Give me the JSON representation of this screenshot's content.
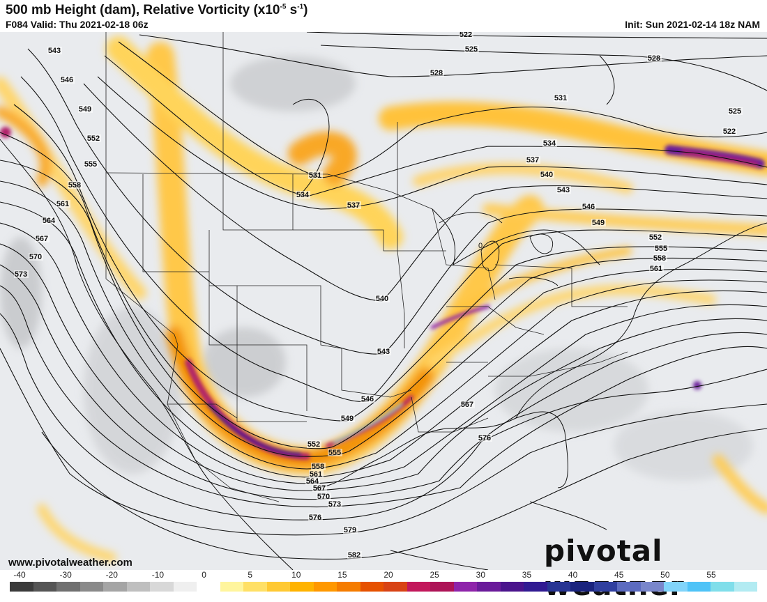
{
  "header": {
    "title": "500 mb Height (dam), Relative Vorticity (x10",
    "title_exp": "-5",
    "title_unit": " s",
    "title_unit_exp": "-1",
    "title_end": ")",
    "valid": "F084 Valid: Thu 2021-02-18 06z",
    "init": "Init: Sun 2021-02-14 18z NAM"
  },
  "footer": {
    "website": "www.pivotalweather.com",
    "logo_text": "pivotal weather"
  },
  "colorbar": {
    "ticks": [
      "-40",
      "-30",
      "-20",
      "-10",
      "0",
      "5",
      "10",
      "15",
      "20",
      "25",
      "30",
      "35",
      "40",
      "45",
      "50",
      "55"
    ],
    "colors": [
      "#3b3b3b",
      "#555555",
      "#707070",
      "#8a8a8a",
      "#a5a5a5",
      "#bfbfbf",
      "#d8d8d8",
      "#efefef",
      "#ffffff",
      "#fff59d",
      "#ffe066",
      "#ffc933",
      "#ffb300",
      "#ff9800",
      "#f57c00",
      "#e65100",
      "#d84315",
      "#c2185b",
      "#ad1457",
      "#8e24aa",
      "#6a1b9a",
      "#4a148c",
      "#311b92",
      "#283593",
      "#1a237e",
      "#303f9f",
      "#5c6bc0",
      "#7986cb",
      "#81d4fa",
      "#4fc3f7",
      "#80deea",
      "#b2ebf2"
    ]
  },
  "contours": [
    {
      "label": "522",
      "positions": [
        "668,53",
        "1046,192"
      ]
    },
    {
      "label": "525",
      "positions": [
        "676,74",
        "1054,163"
      ]
    },
    {
      "label": "528",
      "positions": [
        "626,108",
        "938,87"
      ]
    },
    {
      "label": "531",
      "positions": [
        "804,144",
        "452,255"
      ]
    },
    {
      "label": "534",
      "positions": [
        "788,209",
        "434,283"
      ]
    },
    {
      "label": "537",
      "positions": [
        "764,233",
        "507,298"
      ]
    },
    {
      "label": "540",
      "positions": [
        "784,254",
        "548,432"
      ]
    },
    {
      "label": "543",
      "positions": [
        "78,76",
        "808,276",
        "550,508"
      ]
    },
    {
      "label": "546",
      "positions": [
        "96,118",
        "844,300",
        "527,576"
      ]
    },
    {
      "label": "549",
      "positions": [
        "122,160",
        "858,323",
        "498,604"
      ]
    },
    {
      "label": "552",
      "positions": [
        "134,202",
        "940,344",
        "450,641"
      ]
    },
    {
      "label": "555",
      "positions": [
        "130,239",
        "948,360",
        "480,653"
      ]
    },
    {
      "label": "558",
      "positions": [
        "107,269",
        "946,374",
        "456,673"
      ]
    },
    {
      "label": "561",
      "positions": [
        "90,296",
        "941,389",
        "453,684"
      ]
    },
    {
      "label": "564",
      "positions": [
        "70,320",
        "448,694"
      ]
    },
    {
      "label": "567",
      "positions": [
        "60,346",
        "670,584",
        "458,704"
      ]
    },
    {
      "label": "570",
      "positions": [
        "51,372",
        "464,716"
      ]
    },
    {
      "label": "573",
      "positions": [
        "30,397",
        "480,727"
      ]
    },
    {
      "label": "576",
      "positions": [
        "695,632",
        "452,746"
      ]
    },
    {
      "label": "579",
      "positions": [
        "502,764"
      ]
    },
    {
      "label": "582",
      "positions": [
        "508,800"
      ]
    }
  ]
}
